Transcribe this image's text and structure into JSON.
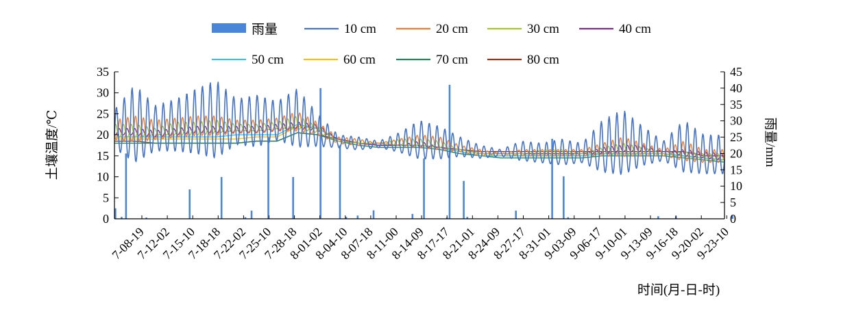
{
  "chart_data": {
    "type": "line",
    "title": "",
    "xlabel": "时间(月-日-时)",
    "ylabel": "土壤温度/℃",
    "y2label": "雨量/mm",
    "ylim": [
      0,
      35
    ],
    "y2lim": [
      0,
      45
    ],
    "yticks": [
      0,
      5,
      10,
      15,
      20,
      25,
      30,
      35
    ],
    "y2ticks": [
      0,
      5,
      10,
      15,
      20,
      25,
      30,
      35,
      40,
      45
    ],
    "categories": [
      "7-08-19",
      "7-12-02",
      "7-15-10",
      "7-18-18",
      "7-22-02",
      "7-25-10",
      "7-28-18",
      "8-01-02",
      "8-04-10",
      "8-07-18",
      "8-11-00",
      "8-14-09",
      "8-17-17",
      "8-21-01",
      "8-24-09",
      "8-27-17",
      "8-31-01",
      "9-03-09",
      "9-06-17",
      "9-10-01",
      "9-13-09",
      "9-16-18",
      "9-20-02",
      "9-23-10"
    ],
    "legend_position": "top",
    "grid": false,
    "rain": {
      "name": "雨量",
      "color": "#4a86d8",
      "events": [
        {
          "x": 0.1,
          "mm": 3.2
        },
        {
          "x": 0.8,
          "mm": 0.6
        },
        {
          "x": 1.3,
          "mm": 20.0
        },
        {
          "x": 3.6,
          "mm": 0.4
        },
        {
          "x": 8.5,
          "mm": 9.0
        },
        {
          "x": 12.1,
          "mm": 12.8
        },
        {
          "x": 14.8,
          "mm": 0.5
        },
        {
          "x": 15.5,
          "mm": 2.5
        },
        {
          "x": 17.4,
          "mm": 25.0
        },
        {
          "x": 20.2,
          "mm": 12.8
        },
        {
          "x": 23.3,
          "mm": 40.0
        },
        {
          "x": 25.5,
          "mm": 22.5
        },
        {
          "x": 26.2,
          "mm": 0.6
        },
        {
          "x": 27.5,
          "mm": 1.0
        },
        {
          "x": 29.3,
          "mm": 2.6
        },
        {
          "x": 33.7,
          "mm": 1.5
        },
        {
          "x": 35.0,
          "mm": 18.5
        },
        {
          "x": 37.6,
          "mm": 0.4
        },
        {
          "x": 37.9,
          "mm": 41.0
        },
        {
          "x": 39.5,
          "mm": 11.6
        },
        {
          "x": 39.9,
          "mm": 0.6
        },
        {
          "x": 45.4,
          "mm": 2.5
        },
        {
          "x": 49.5,
          "mm": 24.5
        },
        {
          "x": 50.8,
          "mm": 13.0
        },
        {
          "x": 51.3,
          "mm": 0.5
        },
        {
          "x": 61.5,
          "mm": 0.8
        },
        {
          "x": 63.5,
          "mm": 0.8
        },
        {
          "x": 69.9,
          "mm": 1.0
        }
      ]
    },
    "series": [
      {
        "name": "10 cm",
        "color": "#4472c4",
        "amp": [
          6,
          12,
          7,
          8,
          10,
          12,
          7,
          8,
          6,
          9,
          5,
          2,
          2,
          1,
          3,
          6,
          5,
          3,
          2,
          1,
          3,
          3,
          4,
          3,
          8,
          10,
          6,
          3,
          8,
          6,
          6
        ]
      },
      {
        "name": "20 cm",
        "color": "#ed7d31",
        "amp": [
          3,
          4,
          3,
          3,
          3,
          3,
          2,
          2,
          2,
          3,
          2,
          1,
          1,
          0,
          1,
          2,
          2,
          1,
          1,
          0,
          1,
          1,
          1,
          1,
          2,
          3,
          2,
          1,
          3,
          2,
          2
        ]
      },
      {
        "name": "30 cm",
        "color": "#a5c425",
        "amp": [
          2,
          2,
          1,
          2,
          2,
          2,
          1,
          1,
          1,
          2,
          1,
          0,
          0,
          0,
          1,
          1,
          1,
          0,
          0,
          0,
          0,
          1,
          1,
          0,
          1,
          2,
          1,
          0,
          1,
          1,
          1
        ]
      },
      {
        "name": "40 cm",
        "color": "#7b2c8a",
        "amp": [
          1,
          1,
          1,
          1,
          1,
          1,
          1,
          1,
          1,
          1,
          1,
          0,
          0,
          0,
          0,
          1,
          0,
          0,
          0,
          0,
          0,
          0,
          0,
          0,
          1,
          1,
          1,
          0,
          1,
          1,
          1
        ]
      },
      {
        "name": "50 cm",
        "color": "#2ec4f0",
        "amp": [
          0,
          0,
          0,
          0,
          0,
          0,
          0,
          0,
          0,
          0,
          0,
          0,
          0,
          0,
          0,
          0,
          0,
          0,
          0,
          0,
          0,
          0,
          0,
          0,
          0,
          0,
          0,
          0,
          0,
          0,
          0
        ]
      },
      {
        "name": "60 cm",
        "color": "#ffc000",
        "amp": [
          0,
          0,
          0,
          0,
          0,
          0,
          0,
          0,
          0,
          0,
          0,
          0,
          0,
          0,
          0,
          0,
          0,
          0,
          0,
          0,
          0,
          0,
          0,
          0,
          0,
          0,
          0,
          0,
          0,
          0,
          0
        ]
      },
      {
        "name": "70 cm",
        "color": "#1b8a5a",
        "amp": [
          0,
          0,
          0,
          0,
          0,
          0,
          0,
          0,
          0,
          0,
          0,
          0,
          0,
          0,
          0,
          0,
          0,
          0,
          0,
          0,
          0,
          0,
          0,
          0,
          0,
          0,
          0,
          0,
          0,
          0,
          0
        ]
      },
      {
        "name": "80 cm",
        "color": "#9e3214",
        "amp": [
          0,
          0,
          0,
          0,
          0,
          0,
          0,
          0,
          0,
          0,
          0,
          0,
          0,
          0,
          0,
          0,
          0,
          0,
          0,
          0,
          0,
          0,
          0,
          0,
          0,
          0,
          0,
          0,
          0,
          0,
          0
        ]
      }
    ],
    "base": {
      "10 cm": [
        20,
        20,
        20,
        20.5,
        21,
        21,
        21.5,
        21.5,
        22,
        22,
        20,
        18,
        17.5,
        17.5,
        17.5,
        17.5,
        17,
        16.5,
        15.5,
        15.5,
        15.5,
        15,
        15,
        15,
        15.5,
        16,
        16,
        15.5,
        15.5,
        14,
        14
      ],
      "20 cm": [
        20.5,
        20.5,
        20.5,
        21,
        21.5,
        21.5,
        21.5,
        21.5,
        22,
        22.5,
        21,
        18.5,
        18,
        18,
        18,
        18,
        17.5,
        16.5,
        15.5,
        15.5,
        15.5,
        15.5,
        15.5,
        15.5,
        16,
        16.5,
        16,
        15.5,
        15.5,
        14.5,
        14.5
      ],
      "30 cm": [
        20.5,
        20.5,
        20.5,
        21,
        21,
        21.5,
        21.5,
        21.5,
        22,
        22.5,
        21,
        18.5,
        18,
        18,
        18,
        18,
        17.5,
        16.5,
        15.5,
        15.5,
        15.5,
        15.5,
        15.5,
        15.5,
        16,
        16,
        16,
        15.5,
        15,
        14.5,
        14.5
      ],
      "40 cm": [
        20.5,
        20.5,
        20,
        20.5,
        21,
        21,
        21,
        21,
        21.5,
        22,
        21.5,
        19,
        18,
        17.5,
        17.5,
        17.5,
        17,
        16.5,
        15.5,
        15.5,
        15.5,
        15.5,
        15.5,
        15.5,
        16,
        16.5,
        16.5,
        16,
        15.5,
        15,
        14.5
      ],
      "50 cm": [
        19.5,
        19.5,
        19.5,
        19.5,
        19.5,
        19.5,
        20,
        20,
        20,
        22.5,
        21.5,
        19,
        18,
        17.5,
        17.5,
        17.5,
        17,
        16,
        15,
        15,
        15,
        15,
        15,
        15,
        15.5,
        15.5,
        15.5,
        15.5,
        15,
        14.5,
        14
      ],
      "60 cm": [
        19,
        19,
        19,
        19,
        19,
        19,
        19,
        19.5,
        19.5,
        22,
        21.5,
        19,
        18,
        17.5,
        17.5,
        17.5,
        17,
        16,
        15,
        15,
        15,
        15,
        15,
        15,
        15.5,
        15.5,
        15.5,
        15.5,
        15,
        14.5,
        14
      ],
      "70 cm": [
        18,
        18,
        18,
        18,
        18,
        18,
        18,
        18.5,
        18.5,
        20.5,
        20,
        18.5,
        17.5,
        17,
        17,
        17,
        16.5,
        15.5,
        15,
        14.5,
        14.5,
        14.5,
        14.5,
        14.5,
        15,
        15,
        15,
        15,
        14.5,
        14,
        13.5
      ],
      "80 cm": [
        18.5,
        18.5,
        18,
        18,
        18,
        18,
        18,
        18.5,
        18.5,
        20.5,
        20,
        19,
        18,
        17.5,
        17.5,
        17.5,
        17,
        16.5,
        16,
        16,
        16,
        16,
        16,
        16,
        16,
        16,
        16,
        16,
        16,
        15,
        15
      ]
    }
  }
}
